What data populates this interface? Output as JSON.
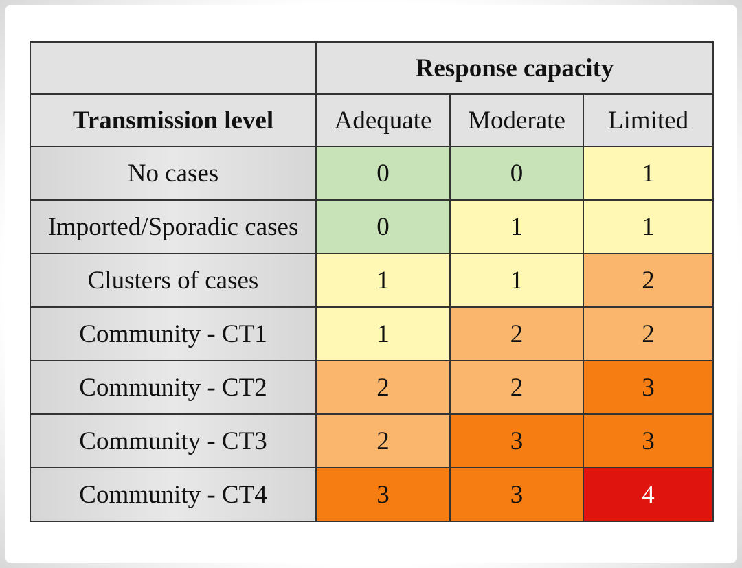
{
  "table": {
    "header": {
      "group": "Response capacity",
      "row_header": "Transmission level",
      "columns": [
        "Adequate",
        "Moderate",
        "Limited"
      ]
    },
    "rows": [
      {
        "label": "No cases",
        "values": [
          0,
          0,
          1
        ]
      },
      {
        "label": "Imported/Sporadic cases",
        "values": [
          0,
          1,
          1
        ]
      },
      {
        "label": "Clusters of cases",
        "values": [
          1,
          1,
          2
        ]
      },
      {
        "label": "Community - CT1",
        "values": [
          1,
          2,
          2
        ]
      },
      {
        "label": "Community - CT2",
        "values": [
          2,
          2,
          3
        ]
      },
      {
        "label": "Community - CT3",
        "values": [
          2,
          3,
          3
        ]
      },
      {
        "label": "Community - CT4",
        "values": [
          3,
          3,
          4
        ]
      }
    ],
    "level_colors": [
      "#c8e3b8",
      "#fff8b4",
      "#f9b66c",
      "#f57d12",
      "#e0140f"
    ],
    "level_text_colors": [
      "#111111",
      "#111111",
      "#111111",
      "#111111",
      "#ffffff"
    ]
  }
}
